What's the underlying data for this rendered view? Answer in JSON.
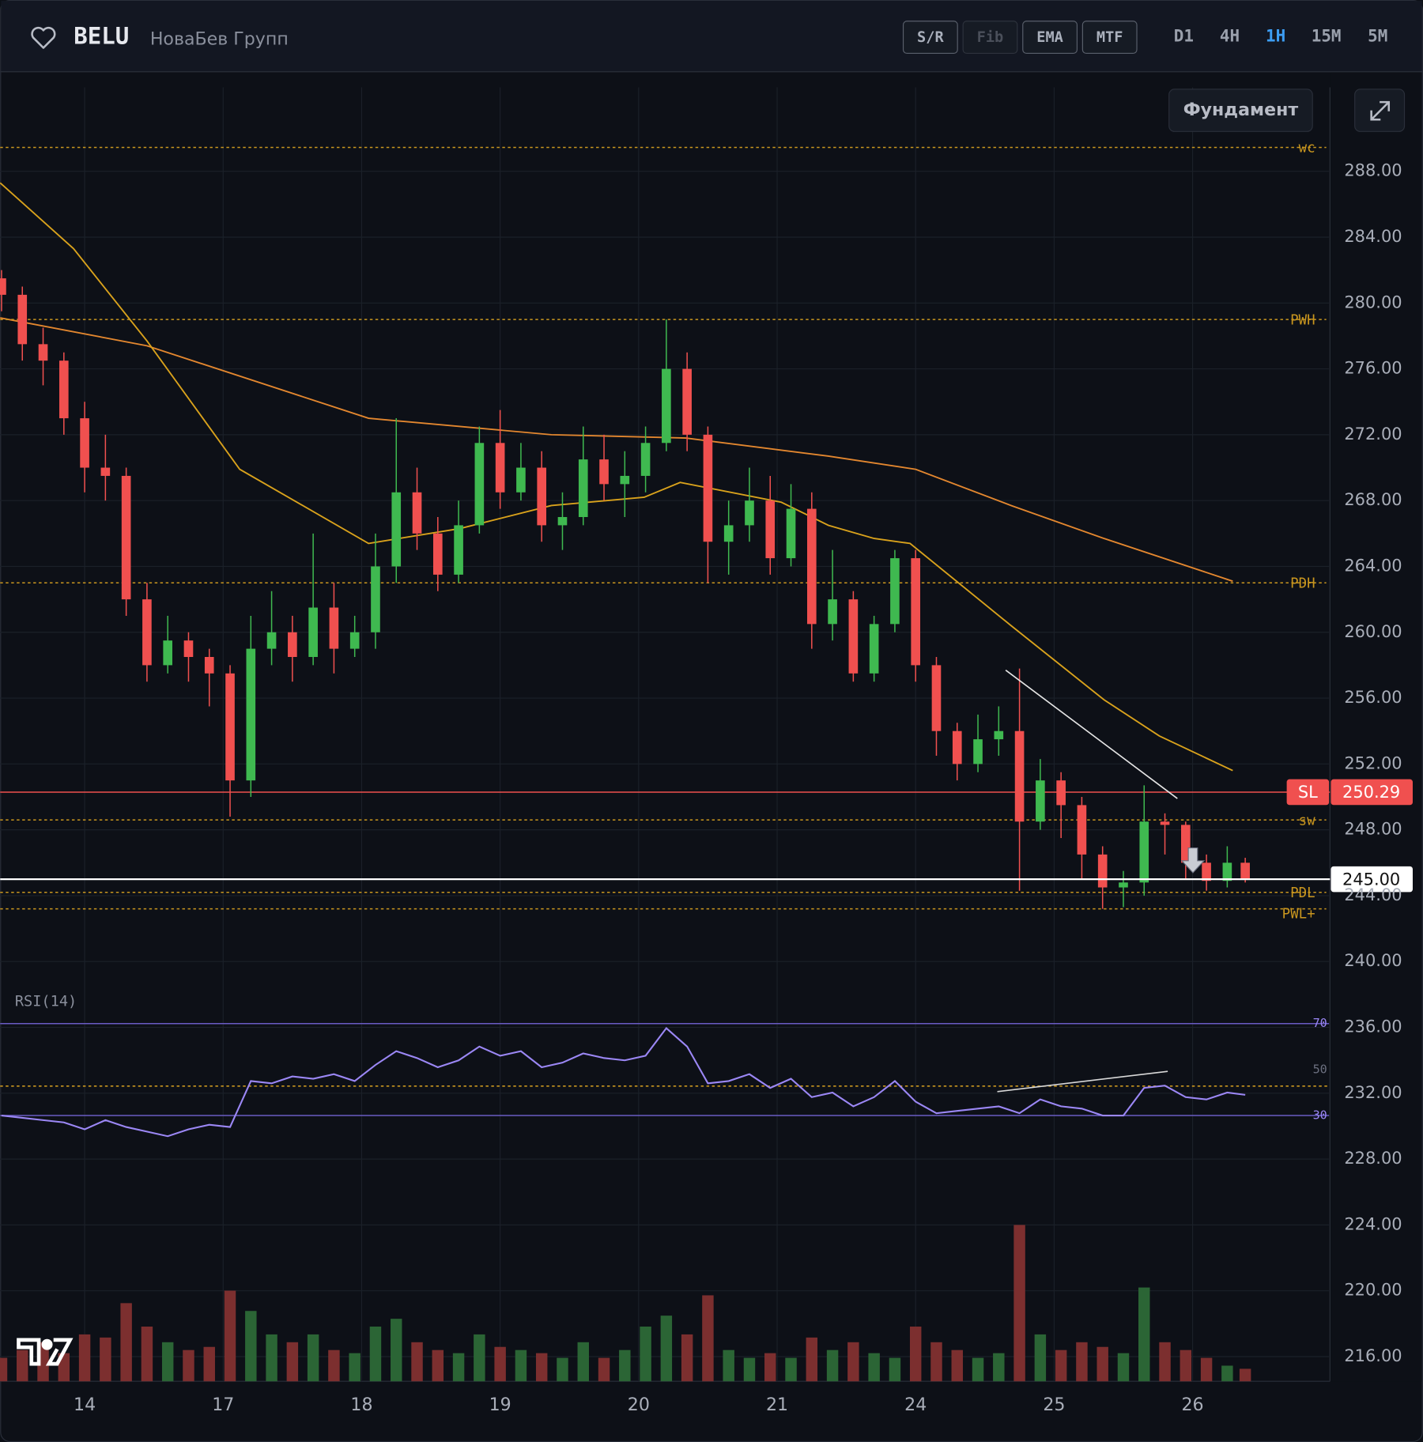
{
  "header": {
    "symbol": "BELU",
    "name": "НоваБев Групп",
    "tools": [
      {
        "label": "S/R",
        "enabled": true
      },
      {
        "label": "Fib",
        "enabled": false
      },
      {
        "label": "EMA",
        "enabled": true
      },
      {
        "label": "MTF",
        "enabled": true
      }
    ],
    "timeframes": [
      "D1",
      "4H",
      "1H",
      "15M",
      "5M"
    ],
    "active_timeframe_index": 2,
    "fundamentals_button": "Фундамент"
  },
  "chart_data": {
    "type": "candlestick",
    "grid": true,
    "up_color": "#3fb950",
    "down_color": "#f0504f",
    "volume_up_color": "#2b6535",
    "volume_down_color": "#7c2f2f",
    "xlim": [
      -0.61,
      8.985
    ],
    "xticks": [
      {
        "value": 0,
        "label": "14"
      },
      {
        "value": 1,
        "label": "17"
      },
      {
        "value": 2,
        "label": "18"
      },
      {
        "value": 3,
        "label": "19"
      },
      {
        "value": 4,
        "label": "20"
      },
      {
        "value": 5,
        "label": "21"
      },
      {
        "value": 6,
        "label": "24"
      },
      {
        "value": 7,
        "label": "25"
      },
      {
        "value": 8,
        "label": "26"
      }
    ],
    "ylim": [
      214.5,
      293.1
    ],
    "yticks": [
      {
        "value": 216,
        "label": "216.00"
      },
      {
        "value": 220,
        "label": "220.00"
      },
      {
        "value": 224,
        "label": "224.00"
      },
      {
        "value": 228,
        "label": "228.00"
      },
      {
        "value": 232,
        "label": "232.00"
      },
      {
        "value": 236,
        "label": "236.00"
      },
      {
        "value": 240,
        "label": "240.00"
      },
      {
        "value": 244,
        "label": "244.00"
      },
      {
        "value": 248,
        "label": "248.00"
      },
      {
        "value": 252,
        "label": "252.00"
      },
      {
        "value": 256,
        "label": "256.00"
      },
      {
        "value": 260,
        "label": "260.00"
      },
      {
        "value": 264,
        "label": "264.00"
      },
      {
        "value": 268,
        "label": "268.00"
      },
      {
        "value": 272,
        "label": "272.00"
      },
      {
        "value": 276,
        "label": "276.00"
      },
      {
        "value": 280,
        "label": "280.00"
      },
      {
        "value": 284,
        "label": "284.00"
      },
      {
        "value": 288,
        "label": "288.00"
      }
    ],
    "candles": {
      "x": [
        -0.6,
        -0.45,
        -0.3,
        -0.15,
        0,
        0.15,
        0.3,
        0.45,
        0.6,
        0.75,
        0.9,
        1.05,
        1.2,
        1.35,
        1.5,
        1.65,
        1.8,
        1.95,
        2.1,
        2.25,
        2.4,
        2.55,
        2.7,
        2.85,
        3,
        3.15,
        3.3,
        3.45,
        3.6,
        3.75,
        3.9,
        4.05,
        4.2,
        4.35,
        4.5,
        4.65,
        4.8,
        4.95,
        5.1,
        5.25,
        5.4,
        5.55,
        5.7,
        5.85,
        6,
        6.15,
        6.3,
        6.45,
        6.6,
        6.75,
        6.9,
        7.05,
        7.2,
        7.35,
        7.5,
        7.65,
        7.8,
        7.95,
        8.1,
        8.25,
        8.38
      ],
      "open": [
        281.5,
        280.5,
        277.5,
        276.5,
        273,
        270,
        269.5,
        262,
        258,
        259.5,
        258.5,
        257.5,
        251,
        259,
        260,
        258.5,
        261.5,
        259,
        260,
        264,
        268.5,
        266,
        263.5,
        266.5,
        271.5,
        268.5,
        270,
        266.5,
        267,
        270.5,
        269,
        269.5,
        271.5,
        276,
        272,
        265.5,
        266.5,
        268,
        264.5,
        267.5,
        260.5,
        262,
        257.5,
        260.5,
        264.5,
        258,
        254,
        252,
        253.5,
        254,
        248.5,
        251,
        249.5,
        246.5,
        244.5,
        244.8,
        248.5,
        248.3,
        246,
        244.9,
        246
      ],
      "high": [
        282,
        281,
        278.5,
        277,
        274,
        272,
        270,
        263,
        261,
        260,
        259,
        258,
        261,
        262.5,
        261,
        266,
        263,
        261,
        266,
        273,
        270,
        267,
        268,
        272.5,
        273.5,
        271.5,
        271,
        268.5,
        272.5,
        272,
        271,
        272.5,
        279,
        277,
        272.5,
        268,
        270,
        269.5,
        269,
        268.5,
        265,
        262.5,
        261,
        265,
        265,
        258.5,
        254.5,
        255,
        255.5,
        257.8,
        252.3,
        251.5,
        250,
        247,
        245.5,
        250.7,
        249,
        248.5,
        246.5,
        247,
        246.3
      ],
      "low": [
        279.5,
        276.5,
        275,
        272,
        268.5,
        268,
        261,
        257,
        257.5,
        257,
        255.5,
        248.8,
        250,
        258,
        257,
        258,
        257.5,
        258.5,
        259,
        263,
        265,
        262.5,
        263,
        266,
        267.5,
        268,
        265.5,
        265,
        266.5,
        268,
        267,
        268.5,
        271,
        271,
        263,
        263.5,
        265.5,
        263.5,
        264,
        259,
        259.5,
        257,
        257,
        260,
        257,
        252.5,
        251,
        251.5,
        252.5,
        244.3,
        248,
        247.5,
        245,
        243.2,
        243.3,
        244,
        246.5,
        245,
        244.3,
        244.5,
        244.8
      ],
      "close": [
        280.5,
        277.5,
        276.5,
        273,
        270,
        269.5,
        262,
        258,
        259.5,
        258.5,
        257.5,
        251,
        259,
        260,
        258.5,
        261.5,
        259,
        260,
        264,
        268.5,
        266,
        263.5,
        266.5,
        271.5,
        268.5,
        270,
        266.5,
        267,
        270.5,
        269,
        269.5,
        271.5,
        276,
        272,
        265.5,
        266.5,
        268,
        264.5,
        267.5,
        260.5,
        262,
        257.5,
        260.5,
        264.5,
        258,
        254,
        252,
        253.5,
        254,
        248.5,
        251,
        249.5,
        246.5,
        244.5,
        244.8,
        248.5,
        248.3,
        246,
        244.9,
        246,
        245
      ]
    },
    "volume": {
      "ylim": [
        0,
        100
      ],
      "values": [
        15,
        20,
        25,
        18,
        30,
        28,
        50,
        35,
        25,
        20,
        22,
        58,
        45,
        30,
        25,
        30,
        20,
        18,
        35,
        40,
        25,
        20,
        18,
        30,
        22,
        20,
        18,
        15,
        25,
        15,
        20,
        35,
        42,
        30,
        55,
        20,
        15,
        18,
        15,
        28,
        20,
        25,
        18,
        15,
        35,
        25,
        20,
        15,
        18,
        100,
        30,
        20,
        25,
        22,
        18,
        60,
        25,
        20,
        15,
        10,
        8
      ]
    },
    "ema": [
      {
        "color": "#e3872f",
        "x": [
          -0.61,
          0.45,
          2.05,
          3.37,
          4.34,
          5.37,
          6.0,
          6.69,
          7.36,
          8.29
        ],
        "values": [
          279.1,
          277.4,
          273,
          272,
          271.8,
          270.7,
          269.9,
          267.7,
          265.7,
          263.1
        ]
      },
      {
        "color": "#d9a21c",
        "x": [
          -0.61,
          -0.08,
          0.45,
          1.12,
          2.05,
          2.71,
          3.37,
          4.04,
          4.3,
          5.03,
          5.37,
          5.7,
          5.96,
          6.69,
          7.36,
          7.76,
          8.29
        ],
        "values": [
          287.3,
          283.3,
          277.7,
          269.9,
          265.4,
          266.3,
          267.7,
          268.2,
          269.1,
          267.9,
          266.5,
          265.7,
          265.4,
          260.4,
          255.9,
          253.7,
          251.6
        ]
      }
    ],
    "trendline": {
      "color": "#e6e6e6",
      "x": [
        6.65,
        7.89
      ],
      "values": [
        257.7,
        249.9
      ]
    },
    "levels": [
      {
        "label": "wc",
        "value": 289.45,
        "color": "#c9961f"
      },
      {
        "label": "PWH",
        "value": 279.0,
        "color": "#c9961f"
      },
      {
        "label": "PDH",
        "value": 263.0,
        "color": "#c9961f"
      },
      {
        "label": "sw",
        "value": 248.6,
        "color": "#c9961f"
      },
      {
        "label": "PDL",
        "value": 244.2,
        "color": "#c9961f"
      },
      {
        "label": "PWL+",
        "value": 243.2,
        "color": "#c9961f"
      }
    ],
    "stop_loss": {
      "label": "SL",
      "value": 250.29,
      "color": "#f0504f"
    },
    "price_line": {
      "value": 245,
      "label": "245.00",
      "color": "#ffffff"
    },
    "rsi": {
      "title": "RSI(14)",
      "color": "#9b87f5",
      "ylim": [
        0,
        100
      ],
      "yticks": [
        70,
        50,
        30
      ],
      "level": 42.8,
      "values": [
        30,
        29,
        28,
        27,
        24,
        28,
        25,
        23,
        21,
        24,
        26,
        25,
        45,
        44,
        47,
        46,
        48,
        45,
        52,
        58,
        55,
        51,
        54,
        60,
        56,
        58,
        51,
        53,
        57,
        55,
        54,
        56,
        68,
        60,
        44,
        45,
        48,
        42,
        46,
        38,
        40,
        34,
        38,
        45,
        36,
        31,
        32,
        33,
        34,
        31,
        37,
        34,
        33,
        30,
        30,
        42,
        43,
        38,
        37,
        40,
        39
      ],
      "divergence": {
        "x": [
          6.59,
          7.82
        ],
        "values": [
          40.4,
          49.2
        ]
      }
    }
  }
}
